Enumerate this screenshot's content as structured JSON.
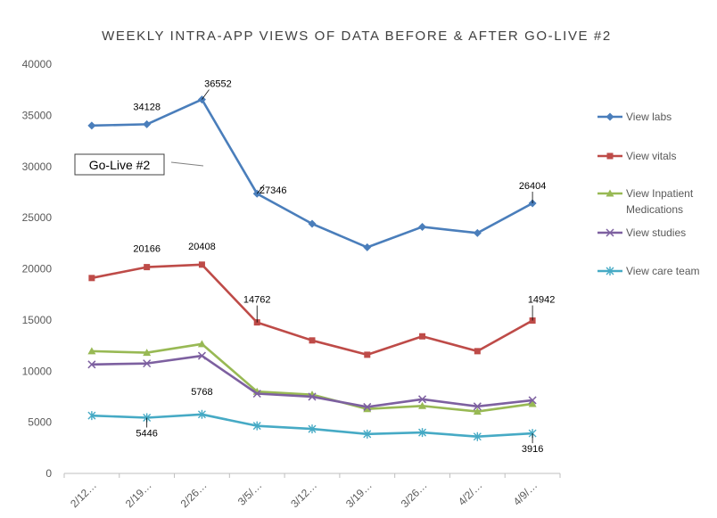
{
  "chart_data": {
    "type": "line",
    "title": "WEEKLY INTRA-APP VIEWS OF DATA BEFORE & AFTER GO-LIVE #2",
    "xlabel": "",
    "ylabel": "",
    "categories": [
      "2/12…",
      "2/19…",
      "2/26…",
      "3/5/…",
      "3/12…",
      "3/19…",
      "3/26…",
      "4/2/…",
      "4/9/…"
    ],
    "ylim": [
      0,
      40000
    ],
    "yticks": [
      0,
      5000,
      10000,
      15000,
      20000,
      25000,
      30000,
      35000,
      40000
    ],
    "grid": false,
    "legend_position": "right",
    "series": [
      {
        "name": "View labs",
        "color": "#4a7ebb",
        "marker": "diamond",
        "values": [
          34000,
          34128,
          36552,
          27346,
          24400,
          22100,
          24100,
          23500,
          26404
        ]
      },
      {
        "name": "View vitals",
        "color": "#be4b48",
        "marker": "square",
        "values": [
          19100,
          20166,
          20408,
          14762,
          13000,
          11600,
          13400,
          11950,
          14942
        ]
      },
      {
        "name": "View Inpatient Medications",
        "color": "#98b954",
        "marker": "triangle",
        "values": [
          11950,
          11800,
          12650,
          8000,
          7700,
          6300,
          6600,
          6050,
          6800
        ]
      },
      {
        "name": "View studies",
        "color": "#7d60a0",
        "marker": "x",
        "values": [
          10650,
          10750,
          11500,
          7800,
          7500,
          6500,
          7250,
          6550,
          7150
        ]
      },
      {
        "name": "View care team",
        "color": "#46aac5",
        "marker": "star",
        "values": [
          5650,
          5446,
          5768,
          4650,
          4350,
          3850,
          4000,
          3600,
          3916
        ]
      }
    ],
    "data_labels": [
      {
        "series": 0,
        "index": 1,
        "text": "34128"
      },
      {
        "series": 0,
        "index": 2,
        "text": "36552"
      },
      {
        "series": 0,
        "index": 3,
        "text": "27346"
      },
      {
        "series": 0,
        "index": 8,
        "text": "26404"
      },
      {
        "series": 1,
        "index": 1,
        "text": "20166"
      },
      {
        "series": 1,
        "index": 2,
        "text": "20408"
      },
      {
        "series": 1,
        "index": 3,
        "text": "14762"
      },
      {
        "series": 1,
        "index": 8,
        "text": "14942"
      },
      {
        "series": 4,
        "index": 1,
        "text": "5446"
      },
      {
        "series": 4,
        "index": 2,
        "text": "5768"
      },
      {
        "series": 4,
        "index": 8,
        "text": "3916"
      }
    ],
    "annotations": [
      {
        "text": "Go-Live #2",
        "points_to_category": "2/26…"
      }
    ]
  }
}
